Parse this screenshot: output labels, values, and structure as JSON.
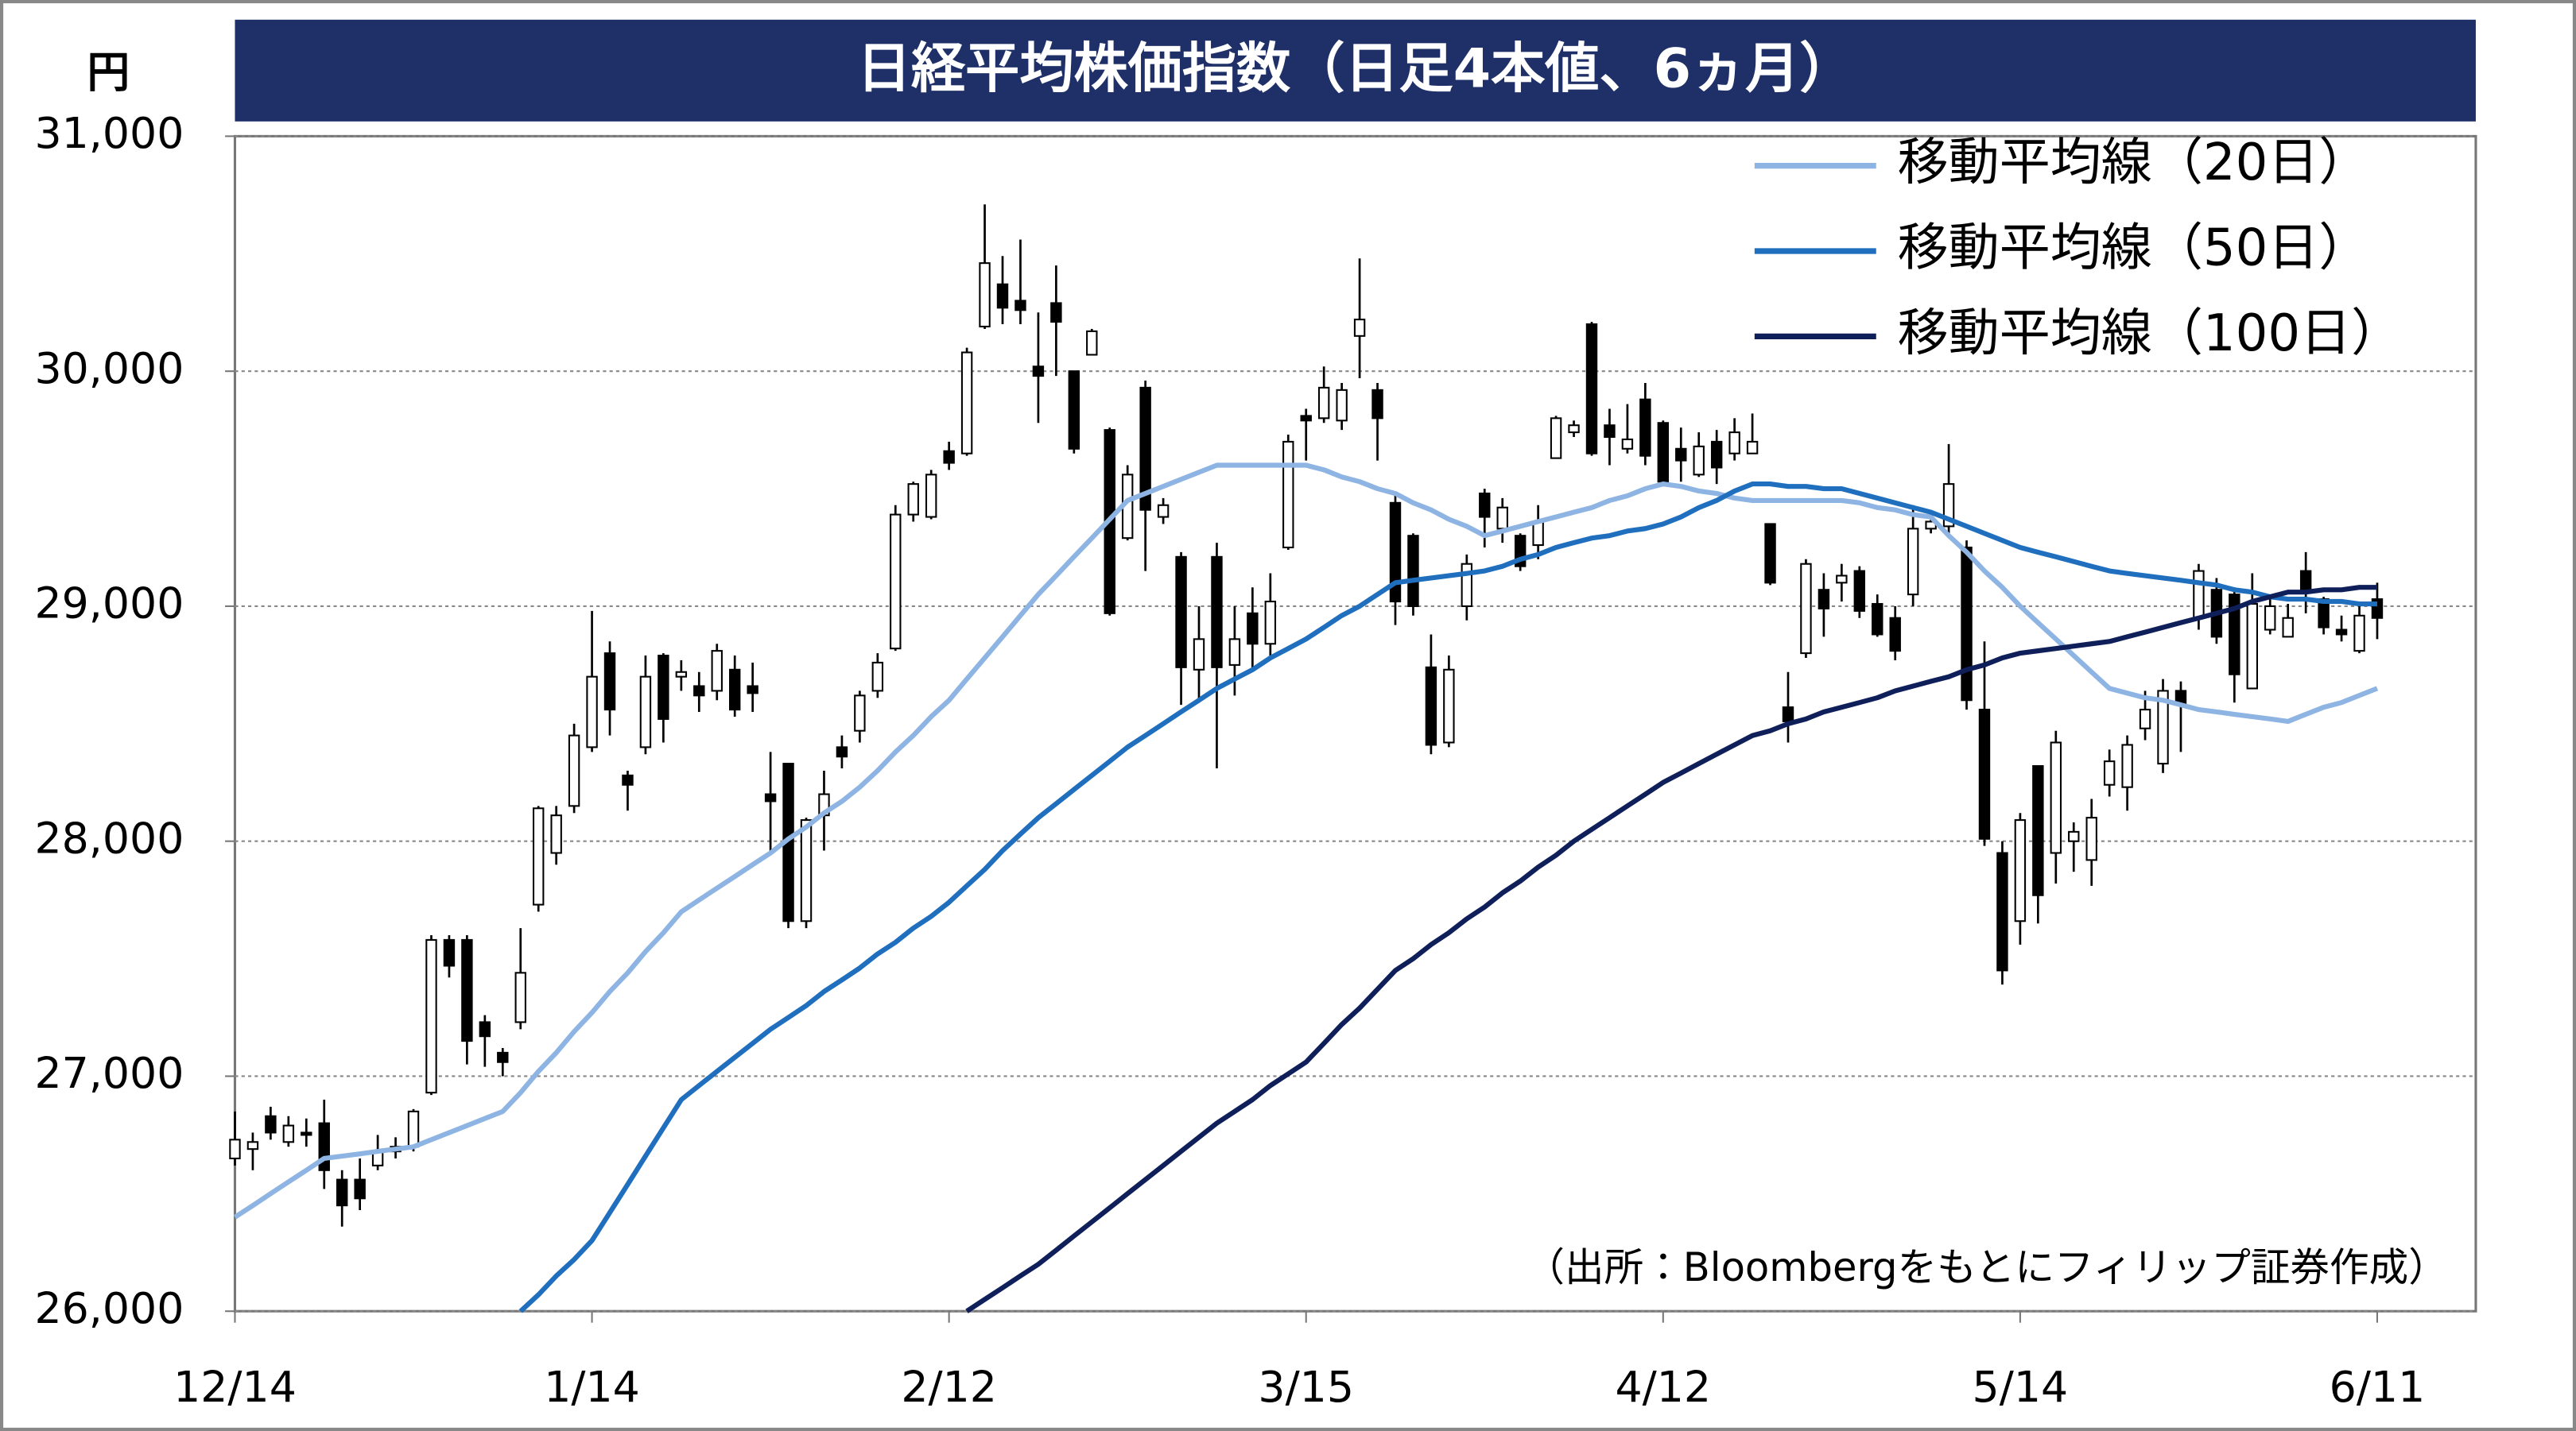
{
  "chart_data": {
    "type": "candlestick",
    "title": "日経平均株価指数（日足4本値、6ヵ月）",
    "y_label": "円",
    "source": "（出所：Bloombergをもとにフィリップ証券作成）",
    "categories": [
      "12/14",
      null,
      null,
      null,
      null,
      null,
      null,
      null,
      null,
      null,
      null,
      null,
      null,
      null,
      null,
      null,
      null,
      null,
      null,
      null,
      "1/14",
      null,
      null,
      null,
      null,
      null,
      null,
      null,
      null,
      null,
      null,
      null,
      null,
      null,
      null,
      null,
      null,
      null,
      null,
      null,
      "2/12",
      null,
      null,
      null,
      null,
      null,
      null,
      null,
      null,
      null,
      null,
      null,
      null,
      null,
      null,
      null,
      null,
      null,
      null,
      null,
      "3/15",
      null,
      null,
      null,
      null,
      null,
      null,
      null,
      null,
      null,
      null,
      null,
      null,
      null,
      null,
      null,
      null,
      null,
      null,
      null,
      "4/12",
      null,
      null,
      null,
      null,
      null,
      null,
      null,
      null,
      null,
      null,
      null,
      null,
      null,
      null,
      null,
      null,
      null,
      null,
      null,
      "5/14",
      null,
      null,
      null,
      null,
      null,
      null,
      null,
      null,
      null,
      null,
      null,
      null,
      null,
      null,
      null,
      null,
      null,
      null,
      null,
      "6/11"
    ],
    "open": [
      26650,
      26690,
      26830,
      26720,
      26760,
      26800,
      26560,
      26560,
      26620,
      26680,
      26700,
      26930,
      27580,
      27580,
      27230,
      27100,
      27230,
      27730,
      27950,
      28150,
      28400,
      28800,
      28280,
      28400,
      28790,
      28700,
      28660,
      28640,
      28730,
      28660,
      28200,
      28330,
      27660,
      28110,
      28400,
      28470,
      28640,
      28820,
      29390,
      29380,
      29660,
      29650,
      30190,
      30370,
      30300,
      30020,
      30290,
      30000,
      30070,
      29750,
      29290,
      29930,
      29380,
      29210,
      28730,
      29210,
      28750,
      28970,
      28840,
      29250,
      29810,
      29800,
      29790,
      30150,
      29920,
      29440,
      29300,
      28740,
      28420,
      29000,
      29480,
      29330,
      29300,
      29260,
      29630,
      29740,
      30200,
      29770,
      29670,
      29880,
      29780,
      29670,
      29560,
      29700,
      29650,
      29650,
      29350,
      28570,
      28800,
      29070,
      29100,
      29150,
      29010,
      28950,
      29050,
      29330,
      29340,
      29250,
      28560,
      27950,
      27660,
      28320,
      27950,
      28000,
      27920,
      28240,
      28230,
      28480,
      28330,
      28640,
      28950,
      29070,
      29050,
      28650,
      28900,
      28870,
      29150,
      29030,
      28900,
      28810,
      29030
    ],
    "high": [
      26850,
      26760,
      26870,
      26830,
      26820,
      26900,
      26600,
      26650,
      26750,
      26740,
      26860,
      27600,
      27600,
      27600,
      27260,
      27120,
      27630,
      28150,
      28150,
      28500,
      28980,
      28850,
      28300,
      28790,
      28800,
      28770,
      28720,
      28840,
      28790,
      28760,
      28380,
      28330,
      28100,
      28300,
      28450,
      28640,
      28800,
      29430,
      29530,
      29580,
      29700,
      30100,
      30710,
      30490,
      30560,
      30250,
      30450,
      30000,
      30180,
      29760,
      29600,
      29960,
      29460,
      29230,
      29000,
      29270,
      29000,
      29080,
      29140,
      29730,
      29840,
      30020,
      29950,
      30480,
      29950,
      29480,
      29310,
      28880,
      28790,
      29220,
      29500,
      29460,
      29310,
      29430,
      29810,
      29790,
      30210,
      29840,
      29860,
      29950,
      29790,
      29760,
      29740,
      29750,
      29800,
      29820,
      29350,
      28720,
      29200,
      29140,
      29180,
      29170,
      29050,
      29000,
      29430,
      29380,
      29690,
      29280,
      28850,
      28000,
      28120,
      28320,
      28470,
      28080,
      28180,
      28390,
      28450,
      28640,
      28690,
      28680,
      29180,
      29120,
      29080,
      29140,
      29040,
      29010,
      29230,
      29040,
      28960,
      29020,
      29100
    ],
    "low": [
      26620,
      26600,
      26730,
      26700,
      26700,
      26520,
      26360,
      26430,
      26600,
      26650,
      26680,
      26920,
      27420,
      27050,
      27040,
      27000,
      27200,
      27700,
      27900,
      28120,
      28380,
      28450,
      28130,
      28370,
      28420,
      28640,
      28550,
      28600,
      28530,
      28550,
      27950,
      27630,
      27630,
      27960,
      28310,
      28420,
      28610,
      28810,
      29360,
      29370,
      29580,
      29640,
      30180,
      30200,
      30200,
      29780,
      29980,
      29650,
      30070,
      28960,
      29280,
      29150,
      29350,
      28580,
      28590,
      28310,
      28620,
      28730,
      28780,
      29240,
      29620,
      29780,
      29750,
      29970,
      29620,
      28920,
      28960,
      28370,
      28400,
      28940,
      29250,
      29270,
      29150,
      29200,
      29630,
      29720,
      29640,
      29600,
      29650,
      29600,
      29510,
      29530,
      29550,
      29520,
      29620,
      29660,
      29090,
      28420,
      28780,
      28870,
      29020,
      28950,
      28870,
      28770,
      29000,
      29310,
      29310,
      28560,
      27980,
      27390,
      27560,
      27650,
      27820,
      27870,
      27810,
      28190,
      28130,
      28430,
      28290,
      28380,
      28900,
      28840,
      28590,
      28650,
      28880,
      28870,
      28970,
      28880,
      28850,
      28800,
      28860
    ],
    "close": [
      26730,
      26720,
      26760,
      26790,
      26750,
      26600,
      26450,
      26480,
      26680,
      26700,
      26850,
      27580,
      27470,
      27150,
      27170,
      27060,
      27440,
      28140,
      28110,
      28450,
      28700,
      28560,
      28240,
      28700,
      28520,
      28720,
      28620,
      28810,
      28560,
      28630,
      28170,
      27660,
      28090,
      28200,
      28360,
      28620,
      28760,
      29390,
      29520,
      29560,
      29610,
      30080,
      30460,
      30270,
      30260,
      29980,
      30210,
      29670,
      30170,
      28970,
      29560,
      29410,
      29430,
      28740,
      28860,
      28740,
      28860,
      28840,
      29020,
      29700,
      29790,
      29930,
      29920,
      30220,
      29800,
      29020,
      29000,
      28410,
      28730,
      29180,
      29380,
      29420,
      29170,
      29360,
      29800,
      29770,
      29650,
      29720,
      29710,
      29640,
      29530,
      29620,
      29680,
      29590,
      29740,
      29700,
      29100,
      28510,
      29180,
      28990,
      29130,
      28980,
      28880,
      28810,
      29330,
      29360,
      29520,
      28600,
      28010,
      27450,
      28090,
      27770,
      28420,
      28040,
      28100,
      28340,
      28410,
      28560,
      28640,
      28580,
      29150,
      28870,
      28710,
      29010,
      29000,
      28950,
      29070,
      28910,
      28880,
      28960,
      28950
    ],
    "up_color": "#ffffff",
    "down_color": "#000000",
    "series": [
      {
        "name": "移動平均線（20日）",
        "color": "#8db4e2",
        "values": [
          26400,
          26450,
          26500,
          26550,
          26600,
          26650,
          26660,
          26670,
          26680,
          26690,
          26700,
          26730,
          26760,
          26790,
          26820,
          26850,
          26930,
          27020,
          27100,
          27190,
          27270,
          27360,
          27440,
          27530,
          27610,
          27700,
          27750,
          27800,
          27850,
          27900,
          27950,
          28010,
          28060,
          28120,
          28170,
          28230,
          28300,
          28380,
          28450,
          28530,
          28600,
          28690,
          28780,
          28870,
          28960,
          29050,
          29130,
          29210,
          29290,
          29370,
          29450,
          29480,
          29510,
          29540,
          29570,
          29600,
          29600,
          29600,
          29600,
          29600,
          29600,
          29580,
          29550,
          29530,
          29500,
          29480,
          29440,
          29410,
          29370,
          29340,
          29300,
          29320,
          29340,
          29360,
          29380,
          29400,
          29420,
          29450,
          29470,
          29500,
          29520,
          29510,
          29490,
          29480,
          29460,
          29450,
          29450,
          29450,
          29450,
          29450,
          29450,
          29440,
          29420,
          29410,
          29390,
          29380,
          29300,
          29230,
          29150,
          29080,
          29000,
          28930,
          28860,
          28790,
          28720,
          28650,
          28630,
          28610,
          28600,
          28580,
          28560,
          28550,
          28540,
          28530,
          28520,
          28510,
          28540,
          28570,
          28590,
          28620,
          28650
        ]
      },
      {
        "name": "移動平均線（50日）",
        "color": "#1f6fbe",
        "values": [
          null,
          null,
          null,
          null,
          null,
          null,
          null,
          null,
          null,
          null,
          null,
          null,
          null,
          null,
          null,
          null,
          26000,
          26070,
          26150,
          26220,
          26300,
          26420,
          26540,
          26660,
          26780,
          26900,
          26960,
          27020,
          27080,
          27140,
          27200,
          27250,
          27300,
          27360,
          27410,
          27460,
          27520,
          27570,
          27630,
          27680,
          27740,
          27810,
          27880,
          27960,
          28030,
          28100,
          28160,
          28220,
          28280,
          28340,
          28400,
          28450,
          28500,
          28550,
          28600,
          28650,
          28690,
          28730,
          28780,
          28820,
          28860,
          28910,
          28960,
          29000,
          29050,
          29100,
          29110,
          29120,
          29130,
          29140,
          29150,
          29170,
          29200,
          29220,
          29250,
          29270,
          29290,
          29300,
          29320,
          29330,
          29350,
          29380,
          29420,
          29450,
          29490,
          29520,
          29520,
          29510,
          29510,
          29500,
          29500,
          29480,
          29460,
          29440,
          29420,
          29400,
          29370,
          29340,
          29310,
          29280,
          29250,
          29230,
          29210,
          29190,
          29170,
          29150,
          29140,
          29130,
          29120,
          29110,
          29100,
          29090,
          29070,
          29060,
          29040,
          29030,
          29030,
          29020,
          29020,
          29010,
          29010
        ]
      },
      {
        "name": "移動平均線（100日）",
        "color": "#0f1f5a",
        "values": [
          null,
          null,
          null,
          null,
          null,
          null,
          null,
          null,
          null,
          null,
          null,
          null,
          null,
          null,
          null,
          null,
          null,
          null,
          null,
          null,
          null,
          null,
          null,
          null,
          null,
          null,
          null,
          null,
          null,
          null,
          null,
          null,
          null,
          null,
          null,
          null,
          null,
          null,
          null,
          null,
          null,
          26000,
          26050,
          26100,
          26150,
          26200,
          26260,
          26320,
          26380,
          26440,
          26500,
          26560,
          26620,
          26680,
          26740,
          26800,
          26850,
          26900,
          26960,
          27010,
          27060,
          27140,
          27220,
          27290,
          27370,
          27450,
          27500,
          27560,
          27610,
          27670,
          27720,
          27780,
          27830,
          27890,
          27940,
          28000,
          28050,
          28100,
          28150,
          28200,
          28250,
          28290,
          28330,
          28370,
          28410,
          28450,
          28470,
          28500,
          28520,
          28550,
          28570,
          28590,
          28610,
          28640,
          28660,
          28680,
          28700,
          28730,
          28750,
          28780,
          28800,
          28810,
          28820,
          28830,
          28840,
          28850,
          28870,
          28890,
          28910,
          28930,
          28950,
          28970,
          28990,
          29020,
          29040,
          29060,
          29060,
          29070,
          29070,
          29080,
          29080
        ]
      }
    ],
    "ylim": [
      26000,
      31000
    ],
    "yticks": [
      {
        "value": 26000,
        "label": "26,000"
      },
      {
        "value": 27000,
        "label": "27,000"
      },
      {
        "value": 28000,
        "label": "28,000"
      },
      {
        "value": 29000,
        "label": "29,000"
      },
      {
        "value": 30000,
        "label": "30,000"
      },
      {
        "value": 31000,
        "label": "31,000"
      }
    ],
    "grid": true,
    "legend": "upper-right",
    "title_color": "#1f3068"
  }
}
